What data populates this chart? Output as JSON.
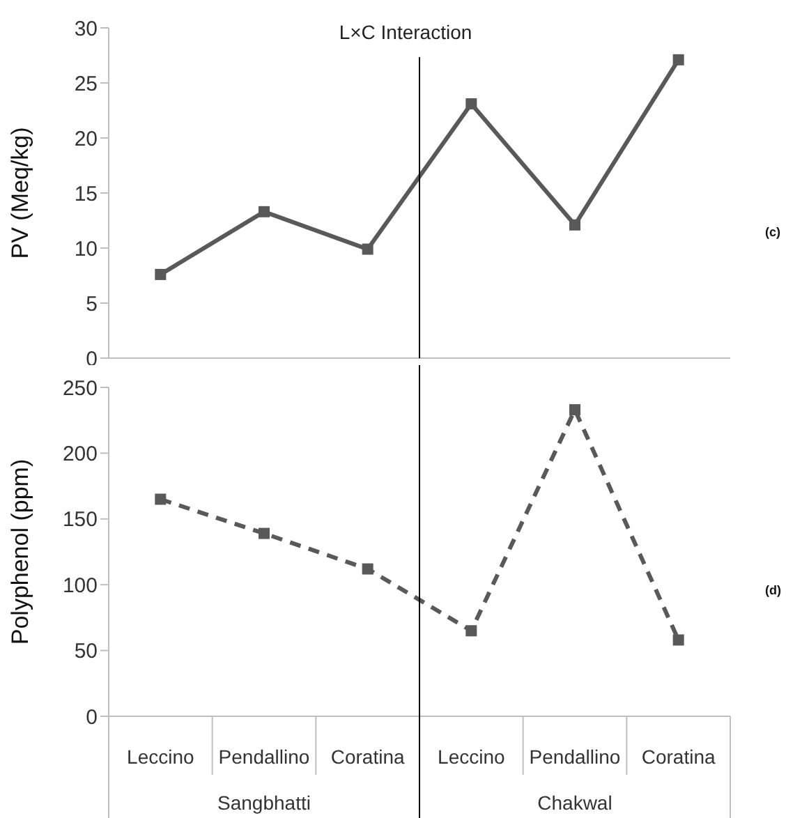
{
  "chart_data": [
    {
      "type": "line",
      "title": "L×C Interaction",
      "ylabel": "PV (Meq/kg)",
      "annotations": [
        "(c)"
      ],
      "categories": [
        null,
        null,
        null,
        null,
        null,
        null
      ],
      "series": [
        {
          "color": "#595959",
          "values": [
            7.6,
            13.3,
            9.9,
            23.1,
            12.1,
            27.1
          ]
        }
      ],
      "ylim": [
        0,
        30
      ],
      "yticks": [
        0,
        5,
        10,
        15,
        20,
        25,
        30
      ],
      "tick_labels": "y",
      "marker": "square",
      "line_style": "solid"
    },
    {
      "type": "line",
      "ylabel": "Polyphenol (ppm)",
      "annotations": [
        "(d)",
        "Sangbhatti",
        "Chakwal"
      ],
      "categories": [
        "Leccino",
        "Pendallino",
        "Coratina",
        "Leccino",
        "Pendallino",
        "Coratina"
      ],
      "series": [
        {
          "color": "#595959",
          "values": [
            165,
            139,
            112,
            65,
            233,
            58
          ]
        }
      ],
      "ylim": [
        0,
        250
      ],
      "yticks": [
        0,
        50,
        100,
        150,
        200,
        250
      ],
      "marker": "square",
      "line_style": "dashed"
    }
  ]
}
